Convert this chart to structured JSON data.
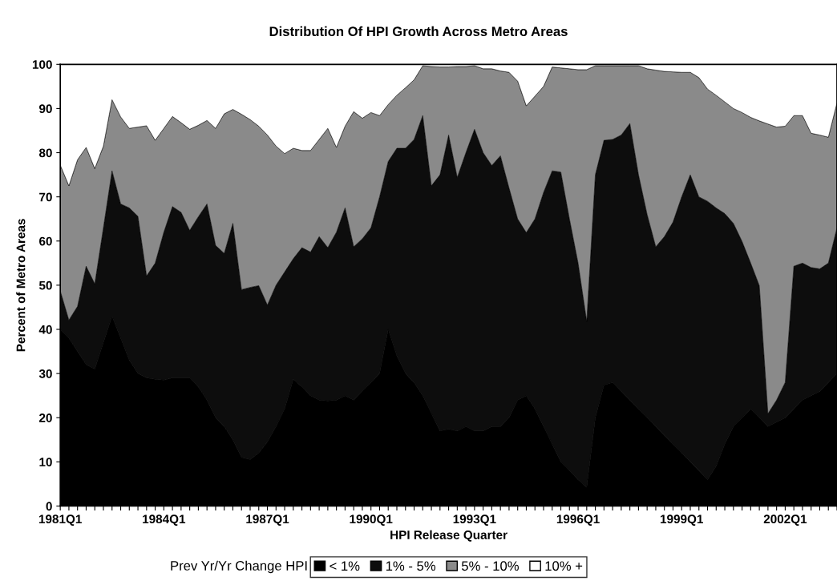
{
  "chart_data": {
    "type": "area",
    "stacked": true,
    "title": "Distribution Of HPI Growth Across Metro Areas",
    "xlabel": "HPI Release Quarter",
    "ylabel": "Percent of Metro Areas",
    "legend_title": "Prev Yr/Yr Change HPI",
    "legend": "bottom",
    "grid": false,
    "categories": [
      "1981Q1",
      null,
      null,
      null,
      null,
      null,
      null,
      null,
      null,
      null,
      null,
      null,
      "1984Q1",
      null,
      null,
      null,
      null,
      null,
      null,
      null,
      null,
      null,
      null,
      null,
      "1987Q1",
      null,
      null,
      null,
      null,
      null,
      null,
      null,
      null,
      null,
      null,
      null,
      "1990Q1",
      null,
      null,
      null,
      null,
      null,
      null,
      null,
      null,
      null,
      null,
      null,
      "1993Q1",
      null,
      null,
      null,
      null,
      null,
      null,
      null,
      null,
      null,
      null,
      null,
      "1996Q1",
      null,
      null,
      null,
      null,
      null,
      null,
      null,
      null,
      null,
      null,
      null,
      "1999Q1",
      null,
      null,
      null,
      null,
      null,
      null,
      null,
      null,
      null,
      null,
      null,
      "2002Q1",
      null,
      null,
      null,
      null,
      null,
      null
    ],
    "ylim": [
      0,
      100
    ],
    "yticks": [
      0,
      10,
      20,
      30,
      40,
      50,
      60,
      70,
      80,
      90,
      100
    ],
    "series": [
      {
        "name": "< 1%",
        "color": "#000000",
        "values": [
          40,
          38,
          35,
          32,
          31,
          37,
          43,
          38,
          33,
          30,
          29,
          28.7,
          28.5,
          29,
          29,
          29,
          27,
          24,
          20,
          18,
          15,
          11,
          10.5,
          12,
          14.5,
          18,
          22,
          28.7,
          27,
          25,
          24,
          23.8,
          24,
          25,
          24,
          26,
          28,
          30,
          40,
          34,
          30,
          28,
          25,
          21,
          17,
          17.4,
          17,
          18,
          17,
          17,
          18,
          18,
          20,
          24,
          25,
          22,
          18,
          14,
          10,
          8,
          6,
          4.2,
          20,
          27.4,
          28,
          26,
          24,
          22,
          20,
          18,
          16,
          14,
          12,
          10,
          8,
          6,
          9,
          14,
          18,
          20,
          22,
          20,
          18,
          19,
          20,
          22,
          24,
          25,
          26,
          28,
          30
        ]
      },
      {
        "name": "1% - 5%",
        "color": "#0d0d0d",
        "values": [
          8.7,
          4.1,
          10.2,
          22.3,
          19.3,
          26,
          32.9,
          30.4,
          34.5,
          35.6,
          23.1,
          26.3,
          33.5,
          38.8,
          37.5,
          33.4,
          38.5,
          44.4,
          39,
          39.2,
          49,
          38,
          39,
          37.9,
          31,
          32,
          31,
          27.3,
          31.5,
          32.5,
          37,
          34.7,
          38,
          42.5,
          34.7,
          34.5,
          35,
          40,
          38,
          47,
          51,
          55,
          63.4,
          51.5,
          58,
          66.6,
          57.4,
          62,
          68.3,
          63,
          59.1,
          61.3,
          52,
          41,
          36.9,
          43,
          53,
          61.9,
          65.6,
          57,
          49,
          37.6,
          55,
          55.4,
          55,
          58,
          62.6,
          53,
          46,
          40.7,
          45,
          50.3,
          58,
          65,
          62,
          63,
          58.5,
          52.2,
          46,
          39.9,
          33,
          29.9,
          2.9,
          5,
          8,
          32.3,
          31,
          29,
          27.7,
          27,
          33
        ]
      },
      {
        "name": "5% - 10%",
        "color": "#8a8a8a",
        "values": [
          28.5,
          30.4,
          33.2,
          26.9,
          26.1,
          18.5,
          16.1,
          19.7,
          18,
          20.2,
          34,
          27.8,
          23.5,
          20.4,
          20.3,
          22.9,
          20.7,
          18.9,
          26.5,
          31.6,
          25.8,
          39.7,
          38,
          36.1,
          38.5,
          31.5,
          26.8,
          25,
          22,
          23,
          22,
          27,
          19.2,
          18.5,
          30.6,
          27.3,
          26.1,
          18.4,
          12.9,
          12,
          13.7,
          13.5,
          11.3,
          27,
          24.4,
          15.4,
          25.1,
          19.5,
          14.4,
          19,
          21.9,
          19.2,
          26.2,
          31.2,
          28.7,
          27.8,
          24,
          23.5,
          23.6,
          34,
          43.8,
          57,
          24.7,
          16.9,
          16.7,
          15.7,
          13.1,
          24.7,
          33,
          40,
          37.4,
          34,
          28.2,
          23.2,
          27,
          25.4,
          25.5,
          25.3,
          26,
          29.2,
          33,
          37.3,
          65.6,
          61.8,
          58,
          34.1,
          33.4,
          30.4,
          30.3,
          28.5,
          28.3
        ]
      },
      {
        "name": "10% +",
        "color": "#ffffff",
        "values": [
          22.8,
          27.5,
          21.6,
          18.8,
          23.6,
          18.5,
          8,
          11.9,
          14.5,
          14.2,
          13.9,
          17.2,
          14.5,
          11.8,
          13.2,
          14.7,
          13.8,
          12.7,
          14.5,
          11.2,
          10.2,
          11.3,
          12.5,
          14,
          16,
          18.5,
          20.2,
          19,
          19.5,
          19.5,
          17,
          14.5,
          18.8,
          14,
          10.7,
          12.2,
          10.9,
          11.6,
          9.1,
          7,
          5.3,
          3.5,
          0.3,
          0.5,
          0.6,
          0.6,
          0.5,
          0.5,
          0.3,
          1,
          1,
          1.5,
          1.8,
          3.8,
          9.4,
          7.2,
          5,
          0.6,
          0.8,
          1,
          1.2,
          1.2,
          0.3,
          0.3,
          0.3,
          0.3,
          0.3,
          0.3,
          1,
          1.3,
          1.6,
          1.7,
          1.8,
          1.8,
          3,
          5.6,
          7,
          8.5,
          10,
          10.9,
          12,
          12.8,
          13.5,
          14.2,
          14,
          11.6,
          11.6,
          15.6,
          16,
          16.5,
          8.7
        ]
      }
    ]
  }
}
